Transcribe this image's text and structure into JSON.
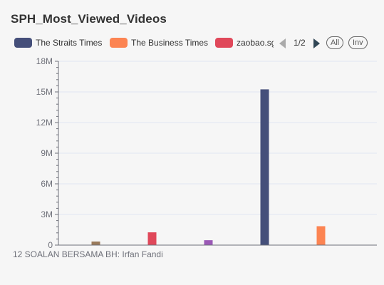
{
  "title": "SPH_Most_Viewed_Videos",
  "legend": {
    "items": [
      {
        "label": "The Straits Times",
        "color": "#454f7a"
      },
      {
        "label": "The Business Times",
        "color": "#fc8452"
      },
      {
        "label": "zaobao.sg",
        "color": "#e0485a"
      }
    ],
    "page_text": "1/2",
    "all_label": "All",
    "inv_label": "Inv"
  },
  "chart_data": {
    "type": "bar",
    "title": "SPH_Most_Viewed_Videos",
    "xlabel": "",
    "ylabel": "",
    "ylim": [
      0,
      18000000
    ],
    "y_ticks": [
      {
        "value": 0,
        "label": "0"
      },
      {
        "value": 3000000,
        "label": "3M"
      },
      {
        "value": 6000000,
        "label": "6M"
      },
      {
        "value": 9000000,
        "label": "9M"
      },
      {
        "value": 12000000,
        "label": "12M"
      },
      {
        "value": 15000000,
        "label": "15M"
      },
      {
        "value": 18000000,
        "label": "18M"
      }
    ],
    "grid": true,
    "categories": [
      "12 SOALAN BERSAMA BH: Irfan Fandi"
    ],
    "bars": [
      {
        "color": "#9a7b5b",
        "value": 350000
      },
      {
        "color": "#e0485a",
        "value": 1250000
      },
      {
        "color": "#9b59b6",
        "value": 480000
      },
      {
        "color": "#454f7a",
        "value": 15250000
      },
      {
        "color": "#fc8452",
        "value": 1850000
      }
    ]
  }
}
